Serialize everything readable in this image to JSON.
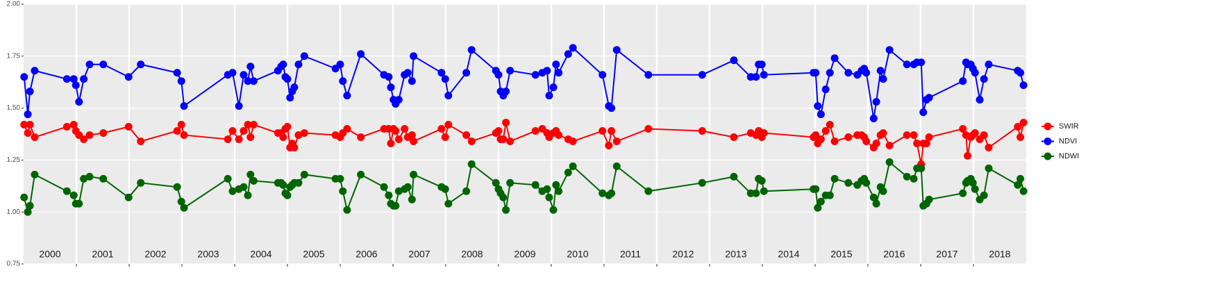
{
  "chart_data": {
    "type": "line",
    "year_labels": [
      "2000",
      "2001",
      "2002",
      "2003",
      "2004",
      "2005",
      "2006",
      "2007",
      "2008",
      "2009",
      "2010",
      "2011",
      "2012",
      "2013",
      "2014",
      "2015",
      "2016",
      "2017",
      "2018"
    ],
    "x": [
      2000.01,
      2000.08,
      2000.12,
      2000.21,
      2000.82,
      2000.95,
      2000.99,
      2001.05,
      2001.14,
      2001.25,
      2001.51,
      2001.99,
      2002.22,
      2002.91,
      2002.99,
      2003.04,
      2003.87,
      2003.96,
      2004.08,
      2004.17,
      2004.25,
      2004.3,
      2004.36,
      2004.82,
      2004.88,
      2004.92,
      2004.96,
      2005.0,
      2005.05,
      2005.09,
      2005.13,
      2005.21,
      2005.32,
      2005.91,
      2006.0,
      2006.05,
      2006.13,
      2006.39,
      2006.83,
      2006.92,
      2006.96,
      2007.01,
      2007.05,
      2007.11,
      2007.22,
      2007.28,
      2007.36,
      2007.39,
      2007.92,
      2007.99,
      2008.05,
      2008.39,
      2008.49,
      2008.95,
      2009.0,
      2009.04,
      2009.09,
      2009.14,
      2009.22,
      2009.7,
      2009.83,
      2009.92,
      2009.96,
      2010.04,
      2010.09,
      2010.14,
      2010.32,
      2010.41,
      2010.97,
      2011.09,
      2011.14,
      2011.24,
      2011.84,
      2012.86,
      2013.46,
      2013.78,
      2013.88,
      2013.93,
      2013.99,
      2014.03,
      2014.97,
      2015.01,
      2015.05,
      2015.11,
      2015.2,
      2015.28,
      2015.37,
      2015.63,
      2015.8,
      2015.88,
      2015.93,
      2015.97,
      2016.11,
      2016.16,
      2016.24,
      2016.29,
      2016.41,
      2016.74,
      2016.87,
      2016.93,
      2017.01,
      2017.05,
      2017.11,
      2017.16,
      2017.8,
      2017.86,
      2017.89,
      2017.95,
      2017.99,
      2018.03,
      2018.12,
      2018.2,
      2018.29,
      2018.84,
      2018.89,
      2018.95
    ],
    "series": [
      {
        "name": "SWIR",
        "color": "#ff0000",
        "values": [
          1.42,
          1.38,
          1.42,
          1.36,
          1.41,
          1.42,
          1.39,
          1.37,
          1.35,
          1.37,
          1.38,
          1.41,
          1.34,
          1.39,
          1.42,
          1.37,
          1.35,
          1.39,
          1.35,
          1.39,
          1.42,
          1.36,
          1.42,
          1.38,
          1.38,
          1.36,
          1.4,
          1.41,
          1.31,
          1.33,
          1.31,
          1.37,
          1.38,
          1.37,
          1.36,
          1.38,
          1.4,
          1.36,
          1.4,
          1.4,
          1.33,
          1.4,
          1.39,
          1.35,
          1.4,
          1.36,
          1.37,
          1.34,
          1.4,
          1.36,
          1.42,
          1.37,
          1.34,
          1.38,
          1.39,
          1.35,
          1.35,
          1.43,
          1.34,
          1.39,
          1.4,
          1.38,
          1.36,
          1.38,
          1.39,
          1.37,
          1.35,
          1.34,
          1.39,
          1.32,
          1.39,
          1.34,
          1.4,
          1.39,
          1.36,
          1.38,
          1.37,
          1.39,
          1.36,
          1.38,
          1.36,
          1.37,
          1.33,
          1.35,
          1.39,
          1.42,
          1.34,
          1.36,
          1.37,
          1.37,
          1.36,
          1.34,
          1.31,
          1.33,
          1.37,
          1.38,
          1.32,
          1.37,
          1.37,
          1.33,
          1.23,
          1.33,
          1.33,
          1.36,
          1.4,
          1.37,
          1.27,
          1.36,
          1.37,
          1.38,
          1.35,
          1.37,
          1.31,
          1.41,
          1.36,
          1.43
        ]
      },
      {
        "name": "NDVI",
        "color": "#0000ff",
        "values": [
          1.65,
          1.47,
          1.58,
          1.68,
          1.64,
          1.64,
          1.61,
          1.53,
          1.64,
          1.71,
          1.71,
          1.65,
          1.71,
          1.67,
          1.63,
          1.51,
          1.66,
          1.67,
          1.51,
          1.66,
          1.63,
          1.7,
          1.63,
          1.68,
          1.7,
          1.71,
          1.65,
          1.64,
          1.55,
          1.58,
          1.6,
          1.71,
          1.75,
          1.69,
          1.71,
          1.63,
          1.56,
          1.76,
          1.66,
          1.65,
          1.6,
          1.54,
          1.52,
          1.54,
          1.66,
          1.67,
          1.63,
          1.75,
          1.67,
          1.64,
          1.56,
          1.67,
          1.78,
          1.68,
          1.66,
          1.58,
          1.56,
          1.58,
          1.68,
          1.66,
          1.67,
          1.68,
          1.56,
          1.6,
          1.71,
          1.67,
          1.76,
          1.79,
          1.66,
          1.51,
          1.5,
          1.78,
          1.66,
          1.66,
          1.73,
          1.65,
          1.65,
          1.71,
          1.71,
          1.66,
          1.67,
          1.67,
          1.51,
          1.47,
          1.59,
          1.67,
          1.74,
          1.67,
          1.66,
          1.68,
          1.69,
          1.67,
          1.45,
          1.53,
          1.68,
          1.64,
          1.78,
          1.71,
          1.71,
          1.72,
          1.72,
          1.48,
          1.54,
          1.55,
          1.63,
          1.72,
          1.71,
          1.71,
          1.69,
          1.67,
          1.54,
          1.64,
          1.71,
          1.68,
          1.67,
          1.61
        ]
      },
      {
        "name": "NDWI",
        "color": "#006400",
        "values": [
          1.07,
          1.0,
          1.03,
          1.18,
          1.1,
          1.08,
          1.04,
          1.04,
          1.16,
          1.17,
          1.16,
          1.07,
          1.14,
          1.12,
          1.05,
          1.02,
          1.16,
          1.1,
          1.11,
          1.12,
          1.08,
          1.18,
          1.15,
          1.14,
          1.14,
          1.13,
          1.09,
          1.08,
          1.12,
          1.13,
          1.14,
          1.14,
          1.18,
          1.16,
          1.16,
          1.1,
          1.01,
          1.18,
          1.12,
          1.08,
          1.04,
          1.03,
          1.03,
          1.1,
          1.11,
          1.12,
          1.06,
          1.18,
          1.12,
          1.11,
          1.04,
          1.1,
          1.23,
          1.14,
          1.11,
          1.09,
          1.07,
          1.01,
          1.14,
          1.13,
          1.1,
          1.11,
          1.07,
          1.01,
          1.13,
          1.1,
          1.19,
          1.22,
          1.09,
          1.08,
          1.09,
          1.22,
          1.1,
          1.14,
          1.17,
          1.09,
          1.09,
          1.16,
          1.15,
          1.1,
          1.11,
          1.11,
          1.02,
          1.05,
          1.08,
          1.08,
          1.16,
          1.14,
          1.13,
          1.15,
          1.16,
          1.14,
          1.07,
          1.04,
          1.12,
          1.1,
          1.24,
          1.17,
          1.16,
          1.21,
          1.21,
          1.03,
          1.04,
          1.06,
          1.09,
          1.14,
          1.15,
          1.16,
          1.14,
          1.11,
          1.06,
          1.08,
          1.21,
          1.13,
          1.16,
          1.1
        ]
      }
    ],
    "xlim": [
      2000,
      2019
    ],
    "xticks": [
      2001,
      2002,
      2003,
      2004,
      2005,
      2006,
      2007,
      2008,
      2009,
      2010,
      2011,
      2012,
      2013,
      2014,
      2015,
      2016,
      2017,
      2018
    ],
    "ylim": [
      0.75,
      2.0
    ],
    "yticks": [
      0.75,
      {
        "value": 1.0,
        "label": "1.00"
      },
      1.25,
      {
        "value": 1.5,
        "label": "1.50"
      },
      1.75,
      {
        "value": 2.0,
        "label": "2.00"
      }
    ],
    "grid": true
  }
}
